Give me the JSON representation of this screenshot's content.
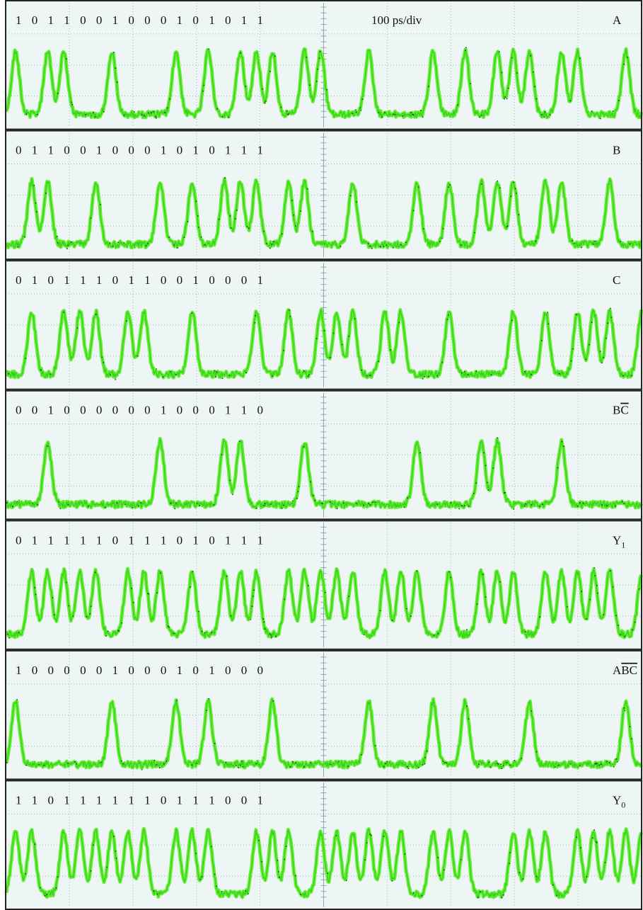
{
  "timebase": "100 ps/div",
  "panels": [
    {
      "bits": "1 0 1 1 0 0 1 0 0 0 1 0 1 0 1 1",
      "label": [
        {
          "text": "A"
        }
      ]
    },
    {
      "bits": "0 1 1 0 0 1 0 0 0 1 0 1 0 1 1 1",
      "label": [
        {
          "text": "B"
        }
      ]
    },
    {
      "bits": "0 1 0 1 1 1 0 1 1 0 0 1 0 0 0 1",
      "label": [
        {
          "text": "C"
        }
      ]
    },
    {
      "bits": "0 0 1 0 0 0 0 0 0 1 0 0 0 1 1 0",
      "label": [
        {
          "text": "B"
        },
        {
          "text": "C",
          "style": "overline"
        }
      ]
    },
    {
      "bits": "0 1 1 1 1 1 0 1 1 1 0 1 0 1 1 1",
      "label": [
        {
          "text": "Y"
        },
        {
          "text": "1",
          "style": "sub"
        }
      ]
    },
    {
      "bits": "1 0 0 0 0 0 1 0 0 0 1 0 1 0 0 0",
      "label": [
        {
          "text": "A"
        },
        {
          "text": "B",
          "style": "overline"
        },
        {
          "text": "C",
          "style": "overline"
        }
      ]
    },
    {
      "bits": "1 1 0 1 1 1 1 1 1 0 1 1 1 0 0 1",
      "label": [
        {
          "text": "Y"
        },
        {
          "text": "0",
          "style": "sub"
        }
      ]
    }
  ]
}
